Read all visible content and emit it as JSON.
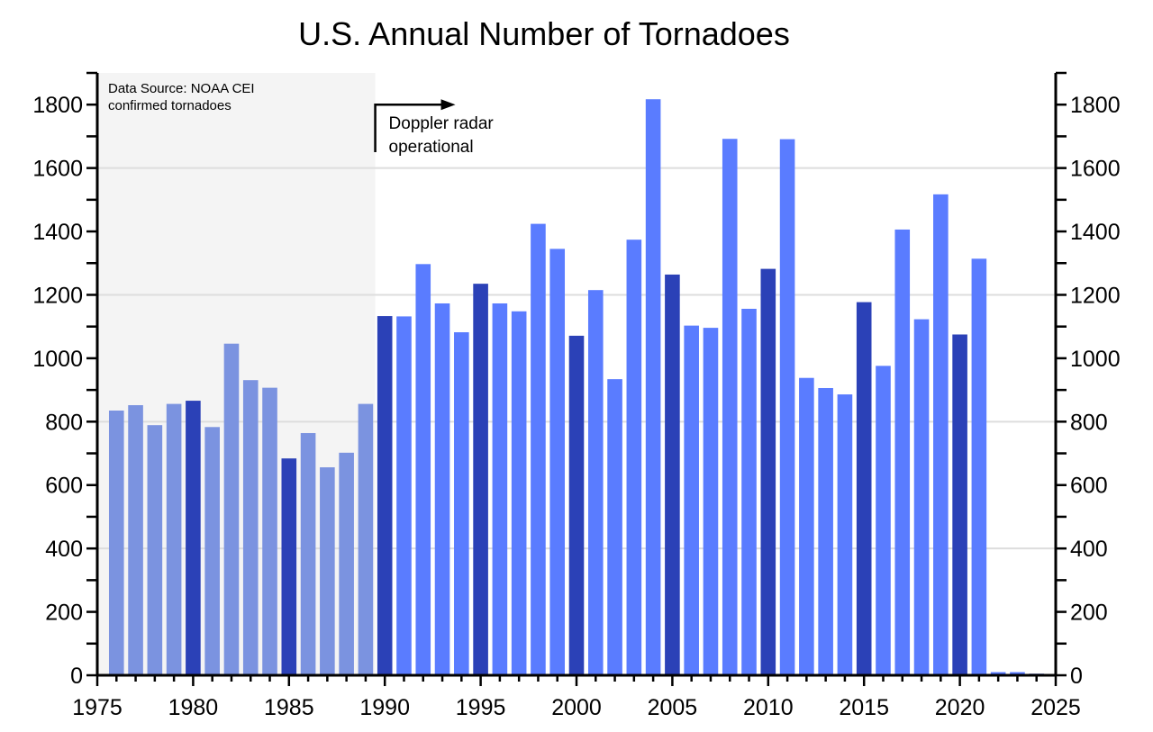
{
  "chart_data": {
    "type": "bar",
    "title": "U.S. Annual Number of Tornadoes",
    "xlabel": "",
    "ylabel": "",
    "xlim": [
      1975,
      2025
    ],
    "ylim": [
      0,
      1900
    ],
    "xticks": [
      1975,
      1980,
      1985,
      1990,
      1995,
      2000,
      2005,
      2010,
      2015,
      2020,
      2025
    ],
    "yticks": [
      0,
      200,
      400,
      600,
      800,
      1000,
      1200,
      1400,
      1600,
      1800
    ],
    "grid": true,
    "shaded_region": [
      1975,
      1989.5
    ],
    "source_note": [
      "Data Source:  NOAA CEI",
      "confirmed tornadoes"
    ],
    "annotation": {
      "lines": [
        "Doppler radar",
        "operational"
      ],
      "year": 1989.5,
      "value": 1800
    },
    "colors": {
      "pre_doppler": "#7b93e0",
      "pre_doppler_highlight": "#2b41b7",
      "doppler": "#5a7cff",
      "doppler_highlight": "#2b41b7",
      "shade": "#f4f4f4",
      "grid": "#dddddd"
    },
    "bars": [
      {
        "year": 1976,
        "value": 835,
        "style": "pre_doppler"
      },
      {
        "year": 1977,
        "value": 852,
        "style": "pre_doppler"
      },
      {
        "year": 1978,
        "value": 789,
        "style": "pre_doppler"
      },
      {
        "year": 1979,
        "value": 856,
        "style": "pre_doppler"
      },
      {
        "year": 1980,
        "value": 866,
        "style": "pre_doppler_highlight"
      },
      {
        "year": 1981,
        "value": 783,
        "style": "pre_doppler"
      },
      {
        "year": 1982,
        "value": 1046,
        "style": "pre_doppler"
      },
      {
        "year": 1983,
        "value": 931,
        "style": "pre_doppler"
      },
      {
        "year": 1984,
        "value": 907,
        "style": "pre_doppler"
      },
      {
        "year": 1985,
        "value": 684,
        "style": "pre_doppler_highlight"
      },
      {
        "year": 1986,
        "value": 764,
        "style": "pre_doppler"
      },
      {
        "year": 1987,
        "value": 656,
        "style": "pre_doppler"
      },
      {
        "year": 1988,
        "value": 702,
        "style": "pre_doppler"
      },
      {
        "year": 1989,
        "value": 856,
        "style": "pre_doppler"
      },
      {
        "year": 1990,
        "value": 1133,
        "style": "doppler_highlight"
      },
      {
        "year": 1991,
        "value": 1132,
        "style": "doppler"
      },
      {
        "year": 1992,
        "value": 1297,
        "style": "doppler"
      },
      {
        "year": 1993,
        "value": 1173,
        "style": "doppler"
      },
      {
        "year": 1994,
        "value": 1082,
        "style": "doppler"
      },
      {
        "year": 1995,
        "value": 1235,
        "style": "doppler_highlight"
      },
      {
        "year": 1996,
        "value": 1173,
        "style": "doppler"
      },
      {
        "year": 1997,
        "value": 1148,
        "style": "doppler"
      },
      {
        "year": 1998,
        "value": 1424,
        "style": "doppler"
      },
      {
        "year": 1999,
        "value": 1345,
        "style": "doppler"
      },
      {
        "year": 2000,
        "value": 1071,
        "style": "doppler_highlight"
      },
      {
        "year": 2001,
        "value": 1215,
        "style": "doppler"
      },
      {
        "year": 2002,
        "value": 934,
        "style": "doppler"
      },
      {
        "year": 2003,
        "value": 1374,
        "style": "doppler"
      },
      {
        "year": 2004,
        "value": 1817,
        "style": "doppler"
      },
      {
        "year": 2005,
        "value": 1264,
        "style": "doppler_highlight"
      },
      {
        "year": 2006,
        "value": 1103,
        "style": "doppler"
      },
      {
        "year": 2007,
        "value": 1096,
        "style": "doppler"
      },
      {
        "year": 2008,
        "value": 1692,
        "style": "doppler"
      },
      {
        "year": 2009,
        "value": 1156,
        "style": "doppler"
      },
      {
        "year": 2010,
        "value": 1282,
        "style": "doppler_highlight"
      },
      {
        "year": 2011,
        "value": 1691,
        "style": "doppler"
      },
      {
        "year": 2012,
        "value": 938,
        "style": "doppler"
      },
      {
        "year": 2013,
        "value": 906,
        "style": "doppler"
      },
      {
        "year": 2014,
        "value": 886,
        "style": "doppler"
      },
      {
        "year": 2015,
        "value": 1177,
        "style": "doppler_highlight"
      },
      {
        "year": 2016,
        "value": 976,
        "style": "doppler"
      },
      {
        "year": 2017,
        "value": 1406,
        "style": "doppler"
      },
      {
        "year": 2018,
        "value": 1123,
        "style": "doppler"
      },
      {
        "year": 2019,
        "value": 1517,
        "style": "doppler"
      },
      {
        "year": 2020,
        "value": 1075,
        "style": "doppler_highlight"
      },
      {
        "year": 2021,
        "value": 1314,
        "style": "doppler"
      },
      {
        "year": 2022,
        "value": 10,
        "style": "doppler"
      },
      {
        "year": 2023,
        "value": 10,
        "style": "doppler"
      },
      {
        "year": 2024,
        "value": 5,
        "style": "doppler_highlight"
      }
    ]
  }
}
